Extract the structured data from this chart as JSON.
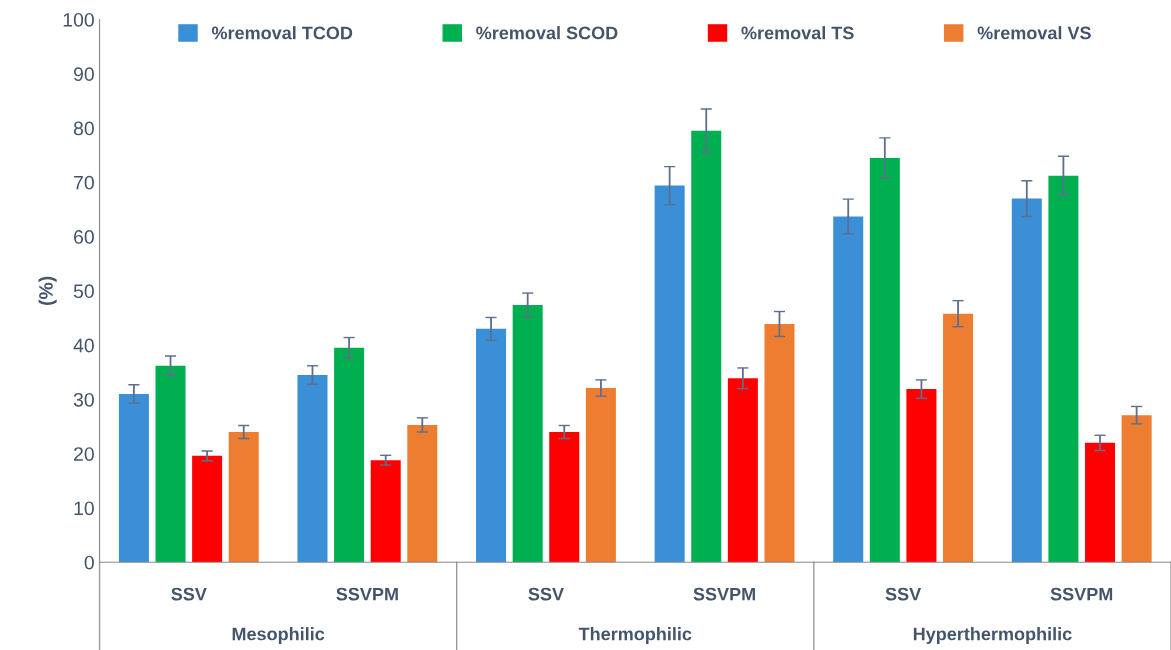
{
  "chart_data": {
    "type": "bar",
    "ylabel": "(%)",
    "categories": [
      "SSV",
      "SSVPM",
      "SSV",
      "SSVPM",
      "SSV",
      "SSVPM"
    ],
    "annotations": [
      "Mesophilic",
      "Thermophilic",
      "Hyperthermophilic"
    ],
    "series": [
      {
        "name": "%removal TCOD",
        "color": "#3a8fd6",
        "values": [
          31.0,
          34.5,
          43.0,
          69.4,
          63.7,
          67.0
        ],
        "errors": [
          1.7,
          1.7,
          2.1,
          3.5,
          3.2,
          3.3
        ]
      },
      {
        "name": "%removal SCOD",
        "color": "#00b050",
        "values": [
          36.2,
          39.5,
          47.4,
          79.5,
          74.5,
          71.2
        ],
        "errors": [
          1.8,
          1.9,
          2.2,
          4.0,
          3.7,
          3.6
        ]
      },
      {
        "name": "%removal TS",
        "color": "#ff0000",
        "values": [
          19.6,
          18.8,
          24.0,
          33.9,
          31.9,
          22.0
        ],
        "errors": [
          0.9,
          0.9,
          1.2,
          1.9,
          1.7,
          1.4
        ]
      },
      {
        "name": "%removal VS",
        "color": "#ed7d31",
        "values": [
          24.0,
          25.3,
          32.1,
          43.9,
          45.8,
          27.1
        ],
        "errors": [
          1.2,
          1.3,
          1.5,
          2.3,
          2.4,
          1.6
        ]
      }
    ],
    "ylim": [
      0,
      100
    ],
    "yticks": [
      0,
      10,
      20,
      30,
      40,
      50,
      60,
      70,
      80,
      90,
      100
    ],
    "grid": false,
    "legend": "top"
  }
}
